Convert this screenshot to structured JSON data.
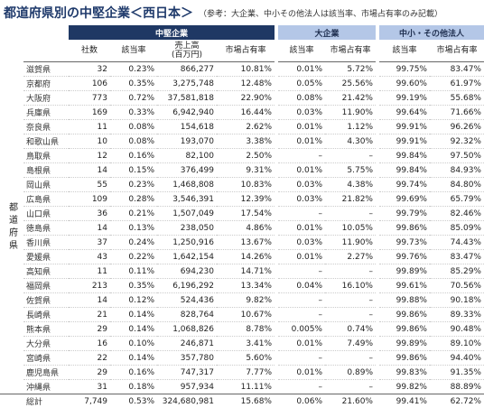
{
  "header": {
    "title": "都道府県別の中堅企業＜西日本＞",
    "note": "（参考：大企業、中小その他法人は該当率、市場占有率のみ記載）"
  },
  "table": {
    "groups": [
      "中堅企業",
      "大企業",
      "中小・その他法人"
    ],
    "columns": [
      "社数",
      "該当率",
      "売上高\n(百万円)",
      "市場占有率",
      "該当率",
      "市場占有率",
      "該当率",
      "市場占有率"
    ],
    "side_label": "都道府県",
    "rows": [
      [
        "滋賀県",
        "32",
        "0.23%",
        "866,277",
        "10.81%",
        "0.01%",
        "5.72%",
        "99.75%",
        "83.47%"
      ],
      [
        "京都府",
        "106",
        "0.35%",
        "3,275,748",
        "12.48%",
        "0.05%",
        "25.56%",
        "99.60%",
        "61.97%"
      ],
      [
        "大阪府",
        "773",
        "0.72%",
        "37,581,818",
        "22.90%",
        "0.08%",
        "21.42%",
        "99.19%",
        "55.68%"
      ],
      [
        "兵庫県",
        "169",
        "0.33%",
        "6,942,940",
        "16.44%",
        "0.03%",
        "11.90%",
        "99.64%",
        "71.66%"
      ],
      [
        "奈良県",
        "11",
        "0.08%",
        "154,618",
        "2.62%",
        "0.01%",
        "1.12%",
        "99.91%",
        "96.26%"
      ],
      [
        "和歌山県",
        "10",
        "0.08%",
        "193,070",
        "3.38%",
        "0.01%",
        "4.30%",
        "99.91%",
        "92.32%"
      ],
      [
        "鳥取県",
        "12",
        "0.16%",
        "82,100",
        "2.50%",
        "–",
        "–",
        "99.84%",
        "97.50%"
      ],
      [
        "島根県",
        "14",
        "0.15%",
        "376,499",
        "9.31%",
        "0.01%",
        "5.75%",
        "99.84%",
        "84.93%"
      ],
      [
        "岡山県",
        "55",
        "0.23%",
        "1,468,808",
        "10.83%",
        "0.03%",
        "4.38%",
        "99.74%",
        "84.80%"
      ],
      [
        "広島県",
        "109",
        "0.28%",
        "3,546,391",
        "12.39%",
        "0.03%",
        "21.82%",
        "99.69%",
        "65.79%"
      ],
      [
        "山口県",
        "36",
        "0.21%",
        "1,507,049",
        "17.54%",
        "–",
        "–",
        "99.79%",
        "82.46%"
      ],
      [
        "徳島県",
        "14",
        "0.13%",
        "238,050",
        "4.86%",
        "0.01%",
        "10.05%",
        "99.86%",
        "85.09%"
      ],
      [
        "香川県",
        "37",
        "0.24%",
        "1,250,916",
        "13.67%",
        "0.03%",
        "11.90%",
        "99.73%",
        "74.43%"
      ],
      [
        "愛媛県",
        "43",
        "0.22%",
        "1,642,154",
        "14.26%",
        "0.01%",
        "2.27%",
        "99.76%",
        "83.47%"
      ],
      [
        "高知県",
        "11",
        "0.11%",
        "694,230",
        "14.71%",
        "–",
        "–",
        "99.89%",
        "85.29%"
      ],
      [
        "福岡県",
        "213",
        "0.35%",
        "6,196,292",
        "13.34%",
        "0.04%",
        "16.10%",
        "99.61%",
        "70.56%"
      ],
      [
        "佐賀県",
        "14",
        "0.12%",
        "524,436",
        "9.82%",
        "–",
        "–",
        "99.88%",
        "90.18%"
      ],
      [
        "長崎県",
        "21",
        "0.14%",
        "828,764",
        "10.67%",
        "–",
        "–",
        "99.86%",
        "89.33%"
      ],
      [
        "熊本県",
        "29",
        "0.14%",
        "1,068,826",
        "8.78%",
        "0.005%",
        "0.74%",
        "99.86%",
        "90.48%"
      ],
      [
        "大分県",
        "16",
        "0.10%",
        "246,871",
        "3.41%",
        "0.01%",
        "7.49%",
        "99.89%",
        "89.10%"
      ],
      [
        "宮崎県",
        "22",
        "0.14%",
        "357,780",
        "5.60%",
        "–",
        "–",
        "99.86%",
        "94.40%"
      ],
      [
        "鹿児島県",
        "29",
        "0.16%",
        "747,317",
        "7.77%",
        "0.01%",
        "0.89%",
        "99.83%",
        "91.35%"
      ],
      [
        "沖縄県",
        "31",
        "0.18%",
        "957,934",
        "11.11%",
        "–",
        "–",
        "99.82%",
        "88.89%"
      ]
    ],
    "total": [
      "総計",
      "7,749",
      "0.53%",
      "324,680,981",
      "15.68%",
      "0.06%",
      "21.60%",
      "99.41%",
      "62.72%"
    ]
  }
}
